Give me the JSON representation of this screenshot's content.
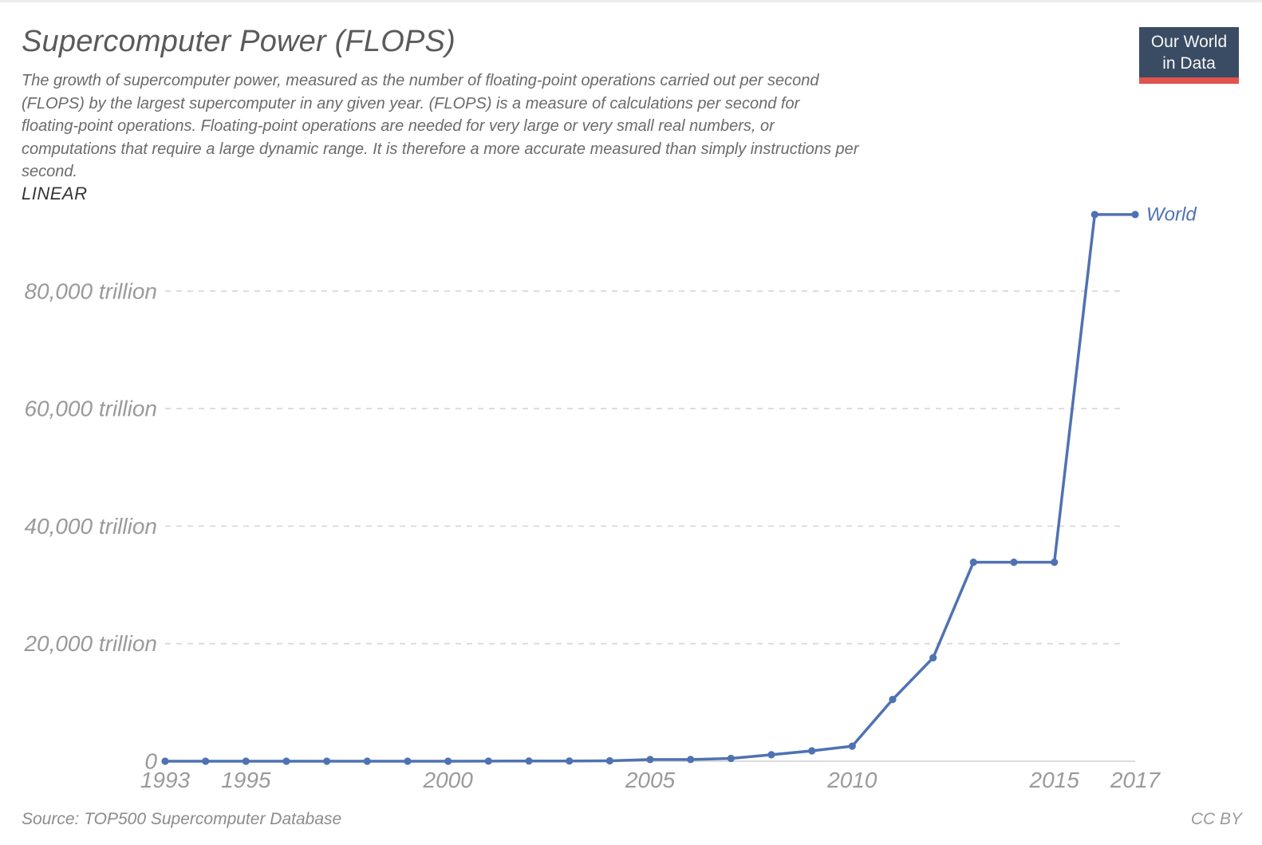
{
  "header": {
    "title": "Supercomputer Power (FLOPS)",
    "subtitle_lines": [
      "The growth of supercomputer power, measured as the number of floating-point operations carried out per second",
      "(FLOPS) by the largest supercomputer in any given year. (FLOPS) is a measure of calculations per second for",
      "floating-point operations. Floating-point operations are needed for very large or very small real numbers, or",
      "computations that require a large dynamic range. It is therefore a more accurate measured than simply instructions per",
      "second."
    ],
    "scale_toggle_label": "LINEAR",
    "logo": {
      "line1": "Our World",
      "line2": "in Data",
      "bg_color": "#3a4c63",
      "bar_color": "#e0534f",
      "text_color": "#f7f7f7"
    }
  },
  "footer": {
    "source": "Source: TOP500 Supercomputer Database",
    "license": "CC BY"
  },
  "chart_data": {
    "type": "line",
    "title": "Supercomputer Power (FLOPS)",
    "unit": "trillion FLOPS",
    "scale": "linear",
    "grid": "dashed-horizontal",
    "legend_position": "end-of-line",
    "xlim": [
      1993,
      2017
    ],
    "ylim": [
      0,
      93015
    ],
    "xticks": [
      1993,
      1995,
      2000,
      2005,
      2010,
      2015,
      2017
    ],
    "yticks": [
      {
        "value": 0,
        "label": "0"
      },
      {
        "value": 20000,
        "label": "20,000 trillion"
      },
      {
        "value": 40000,
        "label": "40,000 trillion"
      },
      {
        "value": 60000,
        "label": "60,000 trillion"
      },
      {
        "value": 80000,
        "label": "80,000 trillion"
      }
    ],
    "series": [
      {
        "name": "World",
        "color": "#4f72b2",
        "x": [
          1993,
          1994,
          1995,
          1996,
          1997,
          1998,
          1999,
          2000,
          2001,
          2002,
          2003,
          2004,
          2005,
          2006,
          2007,
          2008,
          2009,
          2010,
          2011,
          2012,
          2013,
          2014,
          2015,
          2016,
          2017
        ],
        "values": [
          0.0597,
          0.1434,
          0.17,
          0.3682,
          1.338,
          1.338,
          2.3796,
          4.938,
          7.226,
          35.86,
          35.86,
          70.72,
          280.6,
          280.6,
          478.2,
          1105,
          1759,
          2566,
          10510,
          17590,
          33863,
          33863,
          33863,
          93015,
          93015
        ]
      }
    ],
    "grid_color": "#d9d9d9",
    "axis_color": "#cfcfcf"
  }
}
